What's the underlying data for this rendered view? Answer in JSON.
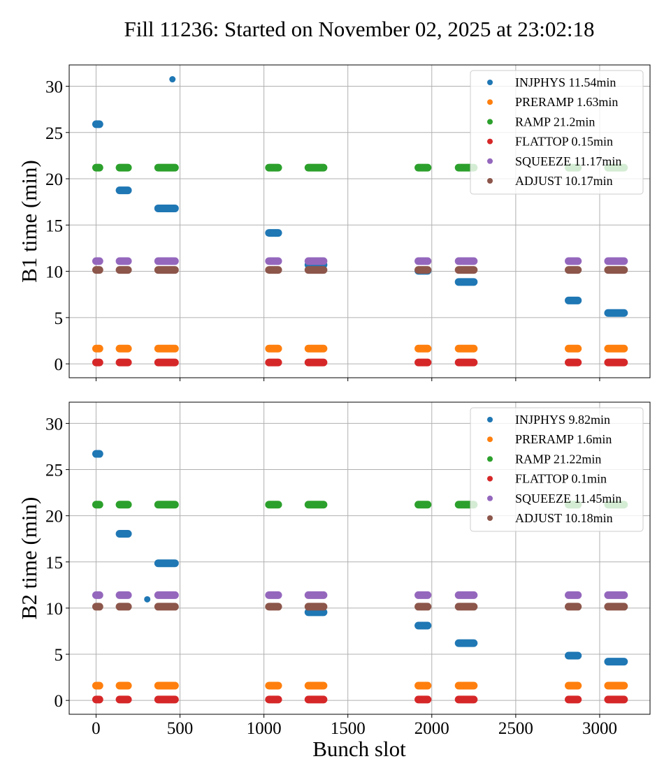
{
  "chart_data": {
    "type": "scatter",
    "title": "Fill 11236: Started on November 02, 2025 at 23:02:18",
    "xlabel": "Bunch slot",
    "xlim": [
      -160,
      3300
    ],
    "xticks": [
      0,
      500,
      1000,
      1500,
      2000,
      2500,
      3000
    ],
    "yticks": [
      0,
      5,
      10,
      15,
      20,
      25,
      30
    ],
    "grid": true,
    "legend_position": "top-right",
    "colors": {
      "INJPHYS": "#1f77b4",
      "PRERAMP": "#ff7f0e",
      "RAMP": "#2ca02c",
      "FLATTOP": "#d62728",
      "SQUEEZE": "#9467bd",
      "ADJUST": "#8c564b"
    },
    "bunch_groups": [
      [
        0,
        20
      ],
      [
        140,
        190
      ],
      [
        370,
        470
      ],
      [
        1030,
        1085
      ],
      [
        1265,
        1355
      ],
      [
        1920,
        1975
      ],
      [
        2160,
        2250
      ],
      [
        2815,
        2870
      ],
      [
        3050,
        3145
      ]
    ],
    "panels": [
      {
        "ylabel": "B1 time (min)",
        "ylim": [
          -1.5,
          32.3
        ],
        "show_xtick_labels": false,
        "legend": [
          {
            "name": "INJPHYS",
            "label": "INJPHYS 11.54min"
          },
          {
            "name": "PRERAMP",
            "label": "PRERAMP 1.63min"
          },
          {
            "name": "RAMP",
            "label": "RAMP 21.2min"
          },
          {
            "name": "FLATTOP",
            "label": "FLATTOP 0.15min"
          },
          {
            "name": "SQUEEZE",
            "label": "SQUEEZE 11.17min"
          },
          {
            "name": "ADJUST",
            "label": "ADJUST 10.17min"
          }
        ],
        "series": [
          {
            "name": "RAMP",
            "groups": [
              [
                0,
                20,
                21.2
              ],
              [
                140,
                190,
                21.2
              ],
              [
                370,
                470,
                21.2
              ],
              [
                1030,
                1085,
                21.2
              ],
              [
                1265,
                1355,
                21.2
              ],
              [
                1920,
                1975,
                21.2
              ],
              [
                2160,
                2250,
                21.2
              ],
              [
                2815,
                2870,
                21.2
              ],
              [
                3050,
                3145,
                21.2
              ]
            ]
          },
          {
            "name": "INJPHYS",
            "groups": [
              [
                0,
                20,
                25.9
              ],
              [
                455,
                455,
                30.75
              ],
              [
                140,
                190,
                18.75
              ],
              [
                370,
                470,
                16.8
              ],
              [
                1030,
                1085,
                14.15
              ],
              [
                1265,
                1355,
                10.7
              ],
              [
                1920,
                1975,
                10.05
              ],
              [
                2160,
                2250,
                8.85
              ],
              [
                2815,
                2870,
                6.85
              ],
              [
                3050,
                3145,
                5.5
              ]
            ]
          },
          {
            "name": "SQUEEZE",
            "groups": [
              [
                0,
                20,
                11.1
              ],
              [
                140,
                190,
                11.1
              ],
              [
                370,
                470,
                11.1
              ],
              [
                1030,
                1085,
                11.1
              ],
              [
                1265,
                1355,
                11.1
              ],
              [
                1920,
                1975,
                11.1
              ],
              [
                2160,
                2250,
                11.1
              ],
              [
                2815,
                2870,
                11.1
              ],
              [
                3050,
                3145,
                11.1
              ]
            ]
          },
          {
            "name": "ADJUST",
            "groups": [
              [
                0,
                20,
                10.15
              ],
              [
                140,
                190,
                10.15
              ],
              [
                370,
                470,
                10.15
              ],
              [
                1030,
                1085,
                10.15
              ],
              [
                1265,
                1355,
                10.15
              ],
              [
                1920,
                1975,
                10.15
              ],
              [
                2160,
                2250,
                10.15
              ],
              [
                2815,
                2870,
                10.15
              ],
              [
                3050,
                3145,
                10.15
              ]
            ]
          },
          {
            "name": "PRERAMP",
            "groups": [
              [
                0,
                20,
                1.65
              ],
              [
                140,
                190,
                1.65
              ],
              [
                370,
                470,
                1.65
              ],
              [
                1030,
                1085,
                1.65
              ],
              [
                1265,
                1355,
                1.65
              ],
              [
                1920,
                1975,
                1.65
              ],
              [
                2160,
                2250,
                1.65
              ],
              [
                2815,
                2870,
                1.65
              ],
              [
                3050,
                3145,
                1.65
              ]
            ]
          },
          {
            "name": "FLATTOP",
            "groups": [
              [
                0,
                20,
                0.15
              ],
              [
                140,
                190,
                0.15
              ],
              [
                370,
                470,
                0.15
              ],
              [
                1030,
                1085,
                0.15
              ],
              [
                1265,
                1355,
                0.15
              ],
              [
                1920,
                1975,
                0.15
              ],
              [
                2160,
                2250,
                0.15
              ],
              [
                2815,
                2870,
                0.15
              ],
              [
                3050,
                3145,
                0.15
              ]
            ]
          }
        ]
      },
      {
        "ylabel": "B2 time (min)",
        "ylim": [
          -1.5,
          32.3
        ],
        "show_xtick_labels": true,
        "legend": [
          {
            "name": "INJPHYS",
            "label": "INJPHYS 9.82min"
          },
          {
            "name": "PRERAMP",
            "label": "PRERAMP 1.6min"
          },
          {
            "name": "RAMP",
            "label": "RAMP 21.22min"
          },
          {
            "name": "FLATTOP",
            "label": "FLATTOP 0.1min"
          },
          {
            "name": "SQUEEZE",
            "label": "SQUEEZE 11.45min"
          },
          {
            "name": "ADJUST",
            "label": "ADJUST 10.18min"
          }
        ],
        "series": [
          {
            "name": "RAMP",
            "groups": [
              [
                0,
                20,
                21.2
              ],
              [
                140,
                190,
                21.2
              ],
              [
                370,
                470,
                21.2
              ],
              [
                1030,
                1085,
                21.2
              ],
              [
                1265,
                1355,
                21.2
              ],
              [
                1920,
                1975,
                21.2
              ],
              [
                2160,
                2250,
                21.2
              ],
              [
                2815,
                2870,
                21.2
              ],
              [
                3050,
                3145,
                21.2
              ]
            ]
          },
          {
            "name": "INJPHYS",
            "groups": [
              [
                0,
                20,
                26.7
              ],
              [
                140,
                190,
                18.05
              ],
              [
                305,
                305,
                10.95
              ],
              [
                370,
                470,
                14.85
              ],
              [
                1265,
                1355,
                9.55
              ],
              [
                1920,
                1975,
                8.1
              ],
              [
                2160,
                2250,
                6.2
              ],
              [
                2815,
                2870,
                4.85
              ],
              [
                3050,
                3145,
                4.2
              ]
            ]
          },
          {
            "name": "SQUEEZE",
            "groups": [
              [
                0,
                20,
                11.4
              ],
              [
                140,
                190,
                11.4
              ],
              [
                370,
                470,
                11.4
              ],
              [
                1030,
                1085,
                11.4
              ],
              [
                1265,
                1355,
                11.4
              ],
              [
                1920,
                1975,
                11.4
              ],
              [
                2160,
                2250,
                11.4
              ],
              [
                2815,
                2870,
                11.4
              ],
              [
                3050,
                3145,
                11.4
              ]
            ]
          },
          {
            "name": "ADJUST",
            "groups": [
              [
                0,
                20,
                10.15
              ],
              [
                140,
                190,
                10.15
              ],
              [
                370,
                470,
                10.15
              ],
              [
                1030,
                1085,
                10.15
              ],
              [
                1265,
                1355,
                10.15
              ],
              [
                1920,
                1975,
                10.15
              ],
              [
                2160,
                2250,
                10.15
              ],
              [
                2815,
                2870,
                10.15
              ],
              [
                3050,
                3145,
                10.15
              ]
            ]
          },
          {
            "name": "PRERAMP",
            "groups": [
              [
                0,
                20,
                1.6
              ],
              [
                140,
                190,
                1.6
              ],
              [
                370,
                470,
                1.6
              ],
              [
                1030,
                1085,
                1.6
              ],
              [
                1265,
                1355,
                1.6
              ],
              [
                1920,
                1975,
                1.6
              ],
              [
                2160,
                2250,
                1.6
              ],
              [
                2815,
                2870,
                1.6
              ],
              [
                3050,
                3145,
                1.6
              ]
            ]
          },
          {
            "name": "FLATTOP",
            "groups": [
              [
                0,
                20,
                0.1
              ],
              [
                140,
                190,
                0.1
              ],
              [
                370,
                470,
                0.1
              ],
              [
                1030,
                1085,
                0.1
              ],
              [
                1265,
                1355,
                0.1
              ],
              [
                1920,
                1975,
                0.1
              ],
              [
                2160,
                2250,
                0.1
              ],
              [
                2815,
                2870,
                0.1
              ],
              [
                3050,
                3145,
                0.1
              ]
            ]
          }
        ]
      }
    ]
  }
}
